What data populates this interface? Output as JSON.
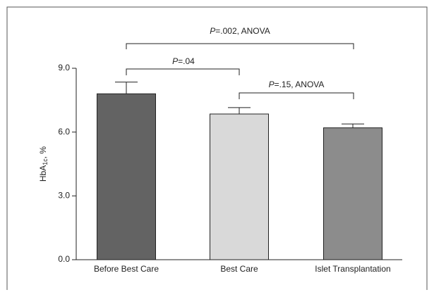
{
  "chart_data": {
    "type": "bar",
    "categories": [
      "Before Best Care",
      "Best Care",
      "Islet Transplantation"
    ],
    "values": [
      7.8,
      6.85,
      6.2
    ],
    "errors": [
      0.55,
      0.3,
      0.18
    ],
    "colors": [
      "#636363",
      "#d9d9d9",
      "#8c8c8c"
    ],
    "y_label": {
      "base": "HbA",
      "subscript": "1c",
      "suffix": ", %"
    },
    "ylim": [
      0,
      9
    ],
    "yticks": [
      {
        "value": 0,
        "label": "0.0"
      },
      {
        "value": 3,
        "label": "3.0"
      },
      {
        "value": 6,
        "label": "6.0"
      },
      {
        "value": 9,
        "label": "9.0"
      }
    ],
    "annotations": [
      {
        "italic": "P",
        "text": "=.002, ANOVA"
      },
      {
        "italic": "P",
        "text": "=.04"
      },
      {
        "italic": "P",
        "text": "=.15, ANOVA"
      }
    ]
  }
}
